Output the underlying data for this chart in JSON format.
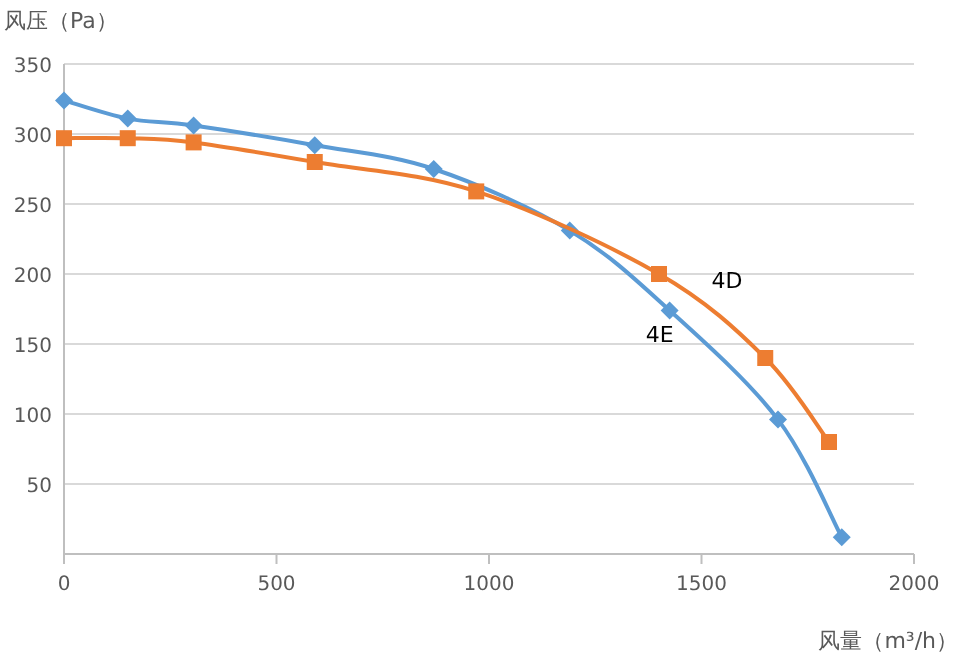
{
  "chart_data": {
    "type": "line",
    "ylabel": "风压（Pa）",
    "xlabel": "风量（m³/h）",
    "xlim": [
      0,
      2000
    ],
    "xticks": [
      0,
      500,
      1000,
      1500,
      2000
    ],
    "ylim": [
      0,
      350
    ],
    "yticks": [
      50,
      100,
      150,
      200,
      250,
      300,
      350
    ],
    "grid": "y",
    "series": [
      {
        "name": "4E",
        "color": "#5b9bd5",
        "marker": "diamond",
        "x": [
          0,
          150,
          305,
          590,
          870,
          1190,
          1425,
          1680,
          1830
        ],
        "values": [
          324,
          311,
          306,
          292,
          275,
          231,
          174,
          96,
          12
        ]
      },
      {
        "name": "4D",
        "color": "#ed7d31",
        "marker": "square",
        "x": [
          0,
          150,
          305,
          590,
          970,
          1400,
          1650,
          1800
        ],
        "values": [
          297,
          297,
          294,
          280,
          259,
          200,
          140,
          80
        ]
      }
    ]
  }
}
